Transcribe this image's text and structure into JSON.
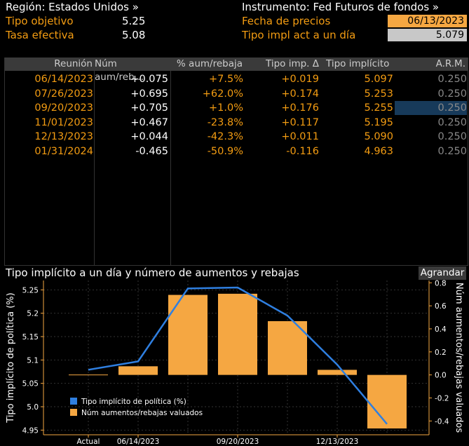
{
  "header": {
    "region_label": "Región: Estados Unidos »",
    "instrument_label": "Instrumento: Fed Futuros de fondos »",
    "target_rate_label": "Tipo objetivo",
    "target_rate_value": "5.25",
    "effective_rate_label": "Tasa efectiva",
    "effective_rate_value": "5.08",
    "price_date_label": "Fecha de precios",
    "price_date_value": "06/13/2023",
    "implied_overnight_label": "Tipo impl act a un día",
    "implied_overnight_value": "5.079"
  },
  "table": {
    "columns": [
      "Reunión",
      "Núm aum/reb…",
      "% aum/rebaja",
      "Tipo imp. Δ",
      "Tipo implícito",
      "A.R.M."
    ],
    "rows": [
      [
        "06/14/2023",
        "+0.075",
        "+7.5%",
        "+0.019",
        "5.097",
        "0.250"
      ],
      [
        "07/26/2023",
        "+0.695",
        "+62.0%",
        "+0.174",
        "5.253",
        "0.250"
      ],
      [
        "09/20/2023",
        "+0.705",
        "+1.0%",
        "+0.176",
        "5.255",
        "0.250"
      ],
      [
        "11/01/2023",
        "+0.467",
        "-23.8%",
        "+0.117",
        "5.195",
        "0.250"
      ],
      [
        "12/13/2023",
        "+0.044",
        "-42.3%",
        "+0.011",
        "5.090",
        "0.250"
      ],
      [
        "01/31/2024",
        "-0.465",
        "-50.9%",
        "-0.116",
        "4.963",
        "0.250"
      ]
    ]
  },
  "chart": {
    "title": "Tipo implícito a un día y número de aumentos y rebajas",
    "expand_button": "Agrandar",
    "left_axis_label": "Tipo implícito de política (%)",
    "right_axis_label": "Núm aumentos/rebajas valuados",
    "left_ticks": [
      "5.25",
      "5.2",
      "5.15",
      "5.1",
      "5.05",
      "5.0",
      "4.95"
    ],
    "right_ticks": [
      "0.8",
      "0.6",
      "0.4",
      "0.2",
      "0.0",
      "-0.2",
      "-0.4"
    ],
    "x_ticks": [
      "Actual",
      "06/14/2023",
      "09/20/2023",
      "12/13/2023"
    ],
    "legend_line": "Tipo implícito de política (%)",
    "legend_bar": "Núm aumentos/rebajas valuados",
    "colors": {
      "line": "#2f7fe0",
      "bar": "#f5a742"
    }
  },
  "chart_data": {
    "type": "bar",
    "categories": [
      "Actual",
      "06/14/2023",
      "07/26/2023",
      "09/20/2023",
      "11/01/2023",
      "12/13/2023",
      "01/31/2024"
    ],
    "series": [
      {
        "name": "Núm aumentos/rebajas valuados",
        "axis": "right",
        "type": "bar",
        "values": [
          0,
          0.075,
          0.695,
          0.705,
          0.467,
          0.044,
          -0.465
        ]
      },
      {
        "name": "Tipo implícito de política (%)",
        "axis": "left",
        "type": "line",
        "values": [
          5.079,
          5.097,
          5.253,
          5.255,
          5.195,
          5.09,
          4.963
        ]
      }
    ],
    "ylim_left": [
      4.94,
      5.27
    ],
    "ylim_right": [
      -0.52,
      0.82
    ],
    "ylabel": "Tipo implícito de política (%)",
    "ylabel_right": "Núm aumentos/rebajas valuados",
    "grid": true,
    "legend": "bottom-left"
  }
}
